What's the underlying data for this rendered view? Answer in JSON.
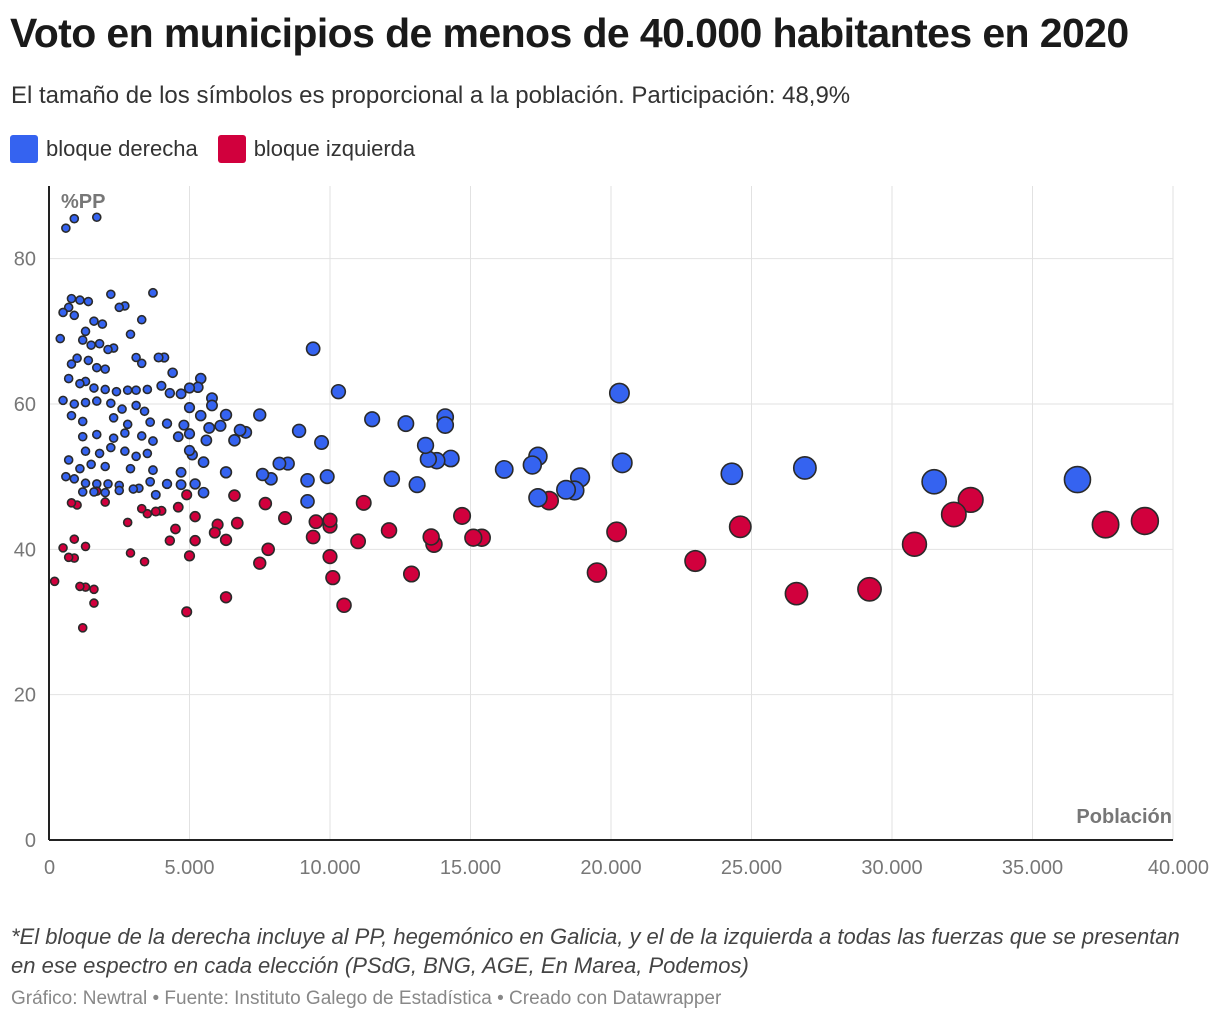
{
  "header": {
    "title": "Voto en municipios de menos de 40.000 habitantes en 2020",
    "subtitle": "El tamaño de los símbolos es proporcional a la población. Participación: 48,9%"
  },
  "legend": [
    {
      "label": "bloque derecha",
      "color": "#3563f0"
    },
    {
      "label": "bloque izquierda",
      "color": "#d1003d"
    }
  ],
  "footer": {
    "note": "*El bloque de la derecha incluye al PP, hegemónico en Galicia, y el de la izquierda a todas las fuerzas que se presentan en ese espectro en cada elección (PSdG, BNG, AGE, En Marea, Podemos)",
    "credits": "Gráfico: Newtral • Fuente: Instituto Galego de Estadística • Creado con Datawrapper"
  },
  "chart_data": {
    "type": "scatter",
    "xlabel": "Población",
    "ylabel": "%PP",
    "xlim": [
      0,
      40000
    ],
    "ylim": [
      0,
      90
    ],
    "x_ticks": [
      0,
      5000,
      10000,
      15000,
      20000,
      25000,
      30000,
      35000,
      40000
    ],
    "x_tick_labels": [
      "0",
      "5.000",
      "10.000",
      "15.000",
      "20.000",
      "25.000",
      "30.000",
      "35.000",
      "40.000"
    ],
    "y_ticks": [
      0,
      20,
      40,
      60,
      80
    ],
    "y_tick_labels": [
      "0",
      "20",
      "40",
      "60",
      "80"
    ],
    "grid": true,
    "size_encoding": "Población",
    "series": [
      {
        "name": "bloque derecha",
        "color": "#3563f0",
        "points": [
          [
            600,
            84.2
          ],
          [
            900,
            85.5
          ],
          [
            1700,
            85.7
          ],
          [
            400,
            69
          ],
          [
            500,
            72.6
          ],
          [
            800,
            74.5
          ],
          [
            1100,
            74.3
          ],
          [
            1400,
            74.1
          ],
          [
            700,
            73.3
          ],
          [
            900,
            72.2
          ],
          [
            1300,
            70
          ],
          [
            1600,
            71.4
          ],
          [
            1900,
            71
          ],
          [
            2200,
            75.1
          ],
          [
            2500,
            73.3
          ],
          [
            2700,
            73.5
          ],
          [
            3300,
            71.6
          ],
          [
            3700,
            75.3
          ],
          [
            1200,
            68.8
          ],
          [
            1500,
            68.1
          ],
          [
            1800,
            68.3
          ],
          [
            2100,
            67.5
          ],
          [
            2300,
            67.7
          ],
          [
            2900,
            69.6
          ],
          [
            3100,
            66.4
          ],
          [
            3900,
            66.4
          ],
          [
            4100,
            66.4
          ],
          [
            3300,
            65.6
          ],
          [
            4400,
            64.3
          ],
          [
            5400,
            63.5
          ],
          [
            800,
            65.5
          ],
          [
            1000,
            66.3
          ],
          [
            1400,
            66
          ],
          [
            1700,
            65
          ],
          [
            2000,
            64.8
          ],
          [
            700,
            63.5
          ],
          [
            1100,
            62.8
          ],
          [
            1300,
            63.1
          ],
          [
            1600,
            62.2
          ],
          [
            2000,
            62
          ],
          [
            2400,
            61.7
          ],
          [
            2800,
            61.9
          ],
          [
            3100,
            61.9
          ],
          [
            3500,
            62
          ],
          [
            4000,
            62.5
          ],
          [
            4300,
            61.5
          ],
          [
            4700,
            61.4
          ],
          [
            5000,
            62.2
          ],
          [
            5300,
            62.3
          ],
          [
            5800,
            60.8
          ],
          [
            500,
            60.5
          ],
          [
            900,
            60
          ],
          [
            1300,
            60.2
          ],
          [
            1700,
            60.4
          ],
          [
            2200,
            60.1
          ],
          [
            2600,
            59.3
          ],
          [
            3100,
            59.8
          ],
          [
            3400,
            59
          ],
          [
            5000,
            59.5
          ],
          [
            5400,
            58.4
          ],
          [
            5800,
            59.8
          ],
          [
            6300,
            58.5
          ],
          [
            800,
            58.4
          ],
          [
            1200,
            57.6
          ],
          [
            2300,
            58.1
          ],
          [
            2800,
            57.2
          ],
          [
            3600,
            57.5
          ],
          [
            4200,
            57.3
          ],
          [
            4800,
            57.1
          ],
          [
            5700,
            56.7
          ],
          [
            6100,
            57
          ],
          [
            6800,
            56.4
          ],
          [
            7000,
            56.1
          ],
          [
            7500,
            58.5
          ],
          [
            1200,
            55.5
          ],
          [
            1700,
            55.8
          ],
          [
            2300,
            55.3
          ],
          [
            2700,
            56
          ],
          [
            3300,
            55.6
          ],
          [
            3700,
            54.9
          ],
          [
            4600,
            55.5
          ],
          [
            5000,
            55.9
          ],
          [
            5600,
            55
          ],
          [
            6600,
            55
          ],
          [
            1300,
            53.5
          ],
          [
            1800,
            53.2
          ],
          [
            2200,
            54
          ],
          [
            2700,
            53.5
          ],
          [
            3100,
            52.8
          ],
          [
            3500,
            53.2
          ],
          [
            5000,
            53.6
          ],
          [
            5100,
            53
          ],
          [
            5500,
            52
          ],
          [
            700,
            52.3
          ],
          [
            1100,
            51.1
          ],
          [
            1500,
            51.7
          ],
          [
            2000,
            51.4
          ],
          [
            2900,
            51.1
          ],
          [
            3700,
            50.9
          ],
          [
            4700,
            50.6
          ],
          [
            6300,
            50.6
          ],
          [
            600,
            50
          ],
          [
            900,
            49.7
          ],
          [
            1300,
            49.1
          ],
          [
            1700,
            49
          ],
          [
            2100,
            49
          ],
          [
            2500,
            48.8
          ],
          [
            3200,
            48.4
          ],
          [
            3600,
            49.3
          ],
          [
            4200,
            49
          ],
          [
            4700,
            48.9
          ],
          [
            5200,
            49
          ],
          [
            5500,
            47.8
          ],
          [
            1200,
            47.9
          ],
          [
            1600,
            47.9
          ],
          [
            2000,
            47.8
          ],
          [
            2500,
            48.1
          ],
          [
            3000,
            48.3
          ],
          [
            3800,
            47.5
          ],
          [
            7600,
            50.3
          ],
          [
            7900,
            49.7
          ],
          [
            8200,
            51.8
          ],
          [
            8500,
            51.8
          ],
          [
            8900,
            56.3
          ],
          [
            9200,
            49.5
          ],
          [
            9200,
            46.6
          ],
          [
            9400,
            67.6
          ],
          [
            9700,
            54.7
          ],
          [
            9900,
            50
          ],
          [
            10300,
            61.7
          ],
          [
            11500,
            57.9
          ],
          [
            12200,
            49.7
          ],
          [
            12700,
            57.3
          ],
          [
            13100,
            48.9
          ],
          [
            13400,
            54.3
          ],
          [
            13500,
            52.4
          ],
          [
            13800,
            52.2
          ],
          [
            14100,
            58.2
          ],
          [
            14100,
            57.1
          ],
          [
            14300,
            52.5
          ],
          [
            16200,
            51
          ],
          [
            17200,
            51.6
          ],
          [
            17400,
            52.8
          ],
          [
            17400,
            47.1
          ],
          [
            18400,
            48.2
          ],
          [
            18700,
            48.1
          ],
          [
            18900,
            49.9
          ],
          [
            20300,
            61.5
          ],
          [
            20400,
            51.9
          ],
          [
            24300,
            50.4
          ],
          [
            26900,
            51.2
          ],
          [
            31500,
            49.3
          ],
          [
            36600,
            49.6
          ]
        ]
      },
      {
        "name": "bloque izquierda",
        "color": "#d1003d",
        "points": [
          [
            200,
            35.6
          ],
          [
            500,
            40.2
          ],
          [
            700,
            38.9
          ],
          [
            900,
            38.8
          ],
          [
            800,
            46.4
          ],
          [
            1000,
            46.1
          ],
          [
            900,
            41.4
          ],
          [
            1100,
            34.9
          ],
          [
            1300,
            40.4
          ],
          [
            1300,
            34.8
          ],
          [
            1200,
            29.2
          ],
          [
            1600,
            34.5
          ],
          [
            1600,
            32.6
          ],
          [
            1700,
            48
          ],
          [
            2000,
            46.5
          ],
          [
            2800,
            43.7
          ],
          [
            2900,
            39.5
          ],
          [
            3300,
            45.6
          ],
          [
            3500,
            44.9
          ],
          [
            3400,
            38.3
          ],
          [
            3800,
            45.2
          ],
          [
            4000,
            45.3
          ],
          [
            4300,
            41.2
          ],
          [
            4500,
            42.8
          ],
          [
            4600,
            45.8
          ],
          [
            4900,
            47.5
          ],
          [
            5000,
            39.1
          ],
          [
            5200,
            41.2
          ],
          [
            5200,
            44.5
          ],
          [
            4900,
            31.4
          ],
          [
            5900,
            42.3
          ],
          [
            6000,
            43.4
          ],
          [
            6300,
            33.4
          ],
          [
            6300,
            41.3
          ],
          [
            6600,
            47.4
          ],
          [
            6700,
            43.6
          ],
          [
            7500,
            38.1
          ],
          [
            7700,
            46.3
          ],
          [
            7800,
            40
          ],
          [
            8400,
            44.3
          ],
          [
            9400,
            41.7
          ],
          [
            9500,
            43.8
          ],
          [
            10000,
            43.2
          ],
          [
            10000,
            44
          ],
          [
            10000,
            39
          ],
          [
            10100,
            36.1
          ],
          [
            10500,
            32.3
          ],
          [
            11000,
            41.1
          ],
          [
            11200,
            46.4
          ],
          [
            12100,
            42.6
          ],
          [
            12900,
            36.6
          ],
          [
            13600,
            41.7
          ],
          [
            13700,
            40.7
          ],
          [
            14700,
            44.6
          ],
          [
            15100,
            41.6
          ],
          [
            15400,
            41.6
          ],
          [
            17800,
            46.7
          ],
          [
            19500,
            36.8
          ],
          [
            20200,
            42.4
          ],
          [
            23000,
            38.4
          ],
          [
            24600,
            43.1
          ],
          [
            26600,
            33.9
          ],
          [
            29200,
            34.5
          ],
          [
            30800,
            40.7
          ],
          [
            32200,
            44.8
          ],
          [
            32800,
            46.8
          ],
          [
            37600,
            43.4
          ],
          [
            39000,
            43.9
          ]
        ]
      }
    ]
  }
}
